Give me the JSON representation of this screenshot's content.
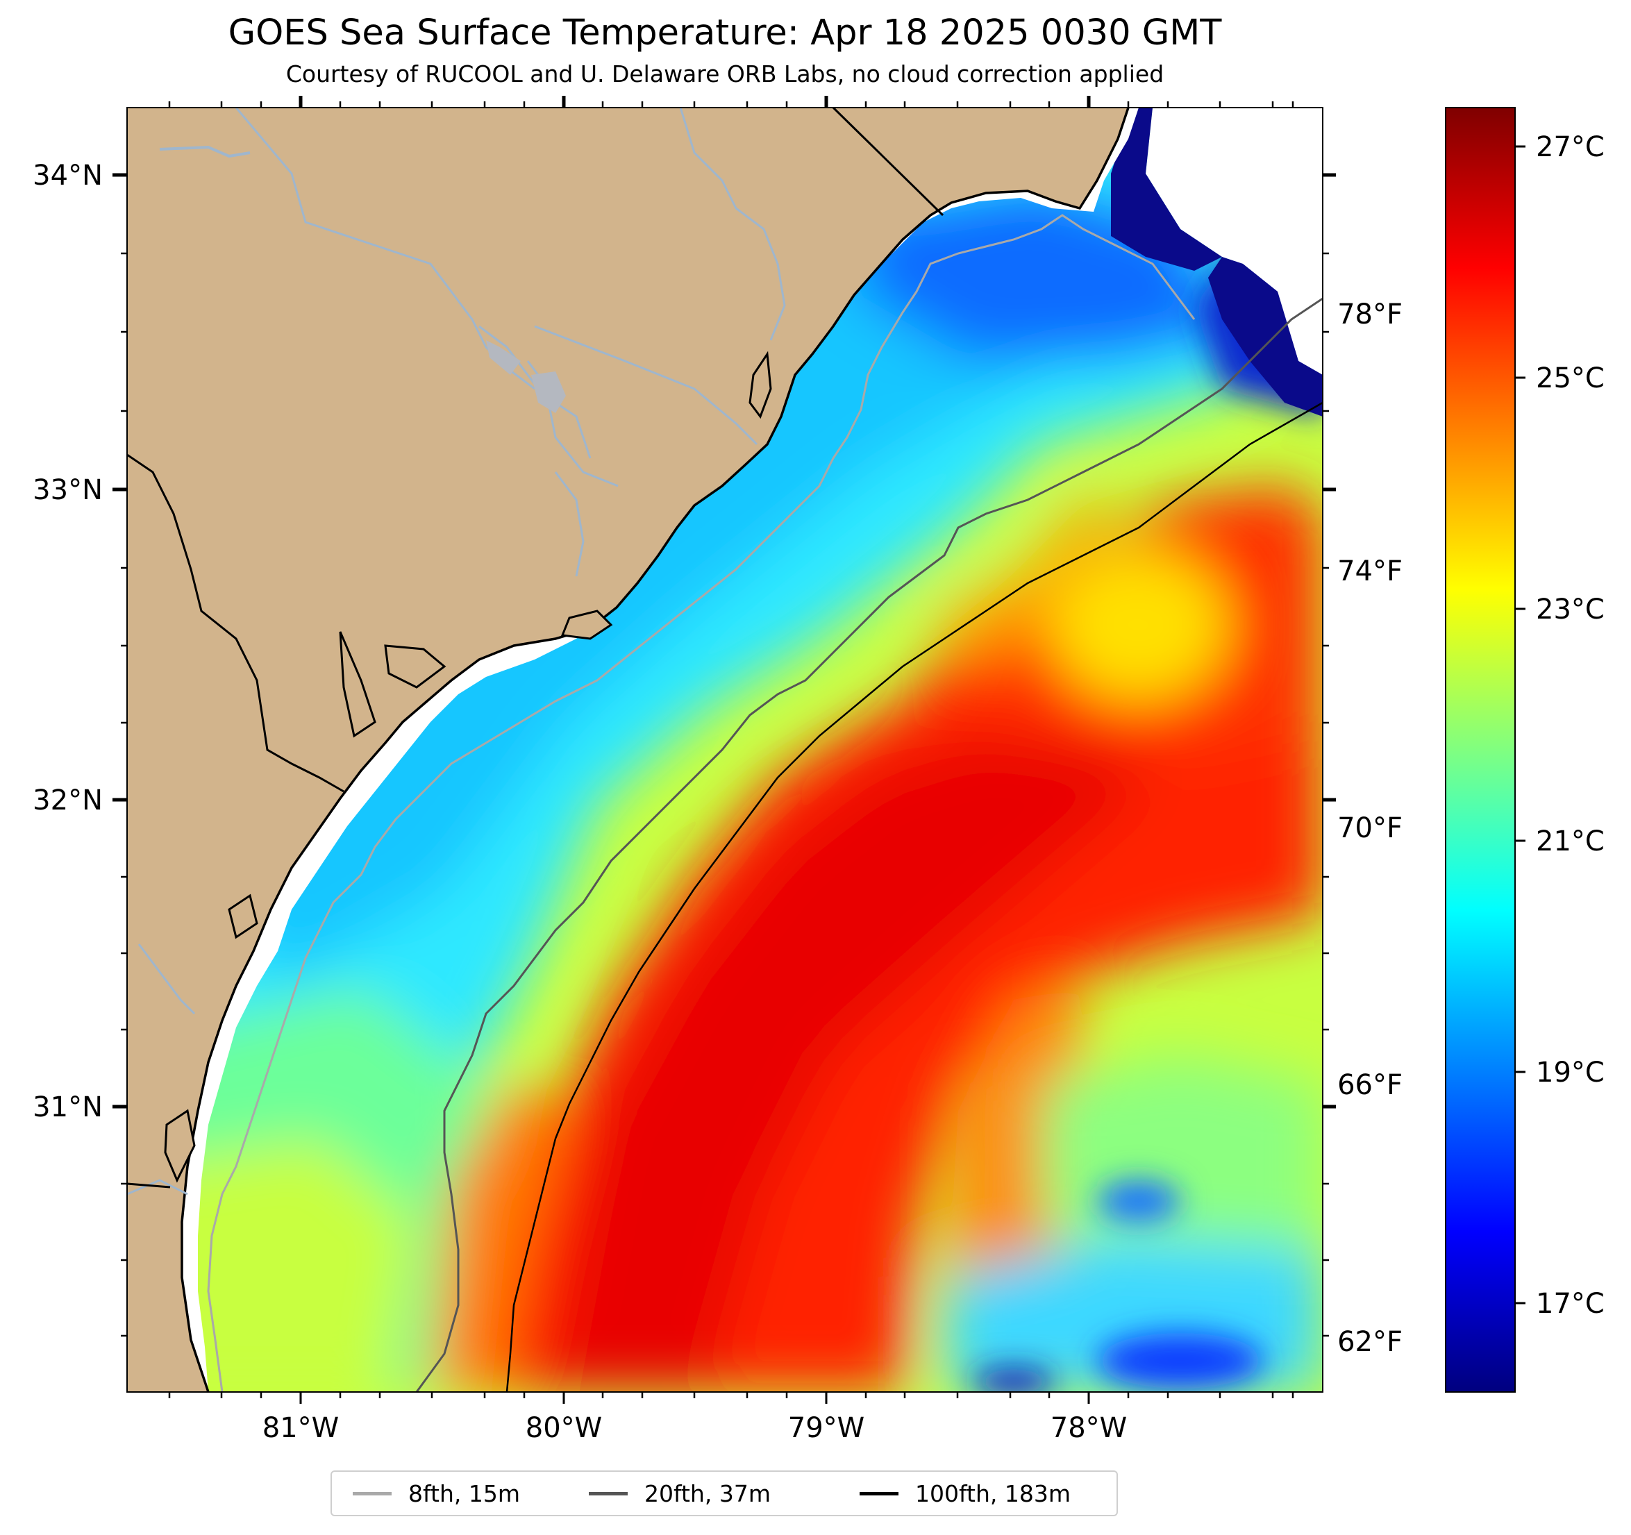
{
  "figure": {
    "title": "GOES Sea Surface Temperature: Apr 18 2025 0030 GMT",
    "subtitle": "Courtesy of RUCOOL and U. Delaware ORB Labs, no cloud correction applied"
  },
  "map": {
    "lon_range": [
      -81.67,
      -77.13
    ],
    "lat_range": [
      30.1,
      34.22
    ],
    "land_color": "#d2b48c",
    "no_data_color": "#ffffff",
    "river_color": "#9fb6cd",
    "coastline_color": "#000000",
    "lon_ticks": [
      "81°W",
      "80°W",
      "79°W",
      "78°W"
    ],
    "lat_ticks": [
      "34°N",
      "33°N",
      "32°N",
      "31°N"
    ]
  },
  "colorbar": {
    "celsius_range": [
      16.3,
      27.4
    ],
    "celsius_ticks": [
      "27°C",
      "25°C",
      "23°C",
      "21°C",
      "19°C",
      "17°C"
    ],
    "fahrenheit_ticks": [
      "78°F",
      "74°F",
      "70°F",
      "66°F",
      "62°F"
    ],
    "colormap": [
      "#00007f",
      "#0000ff",
      "#0080ff",
      "#00ffff",
      "#80ff80",
      "#ffff00",
      "#ff8000",
      "#ff0000",
      "#7f0000"
    ]
  },
  "legend": {
    "items": [
      {
        "label": "8fth, 15m",
        "color": "#a9a9a9"
      },
      {
        "label": "20fth, 37m",
        "color": "#555555"
      },
      {
        "label": "100fth, 183m",
        "color": "#000000"
      }
    ]
  },
  "sst_features": {
    "gulf_stream_core": "27°C",
    "shelf_water": "20°C",
    "nearshore_north": "18°C",
    "offshore_east": "22°C",
    "warm_eddy_center": "24°C"
  }
}
